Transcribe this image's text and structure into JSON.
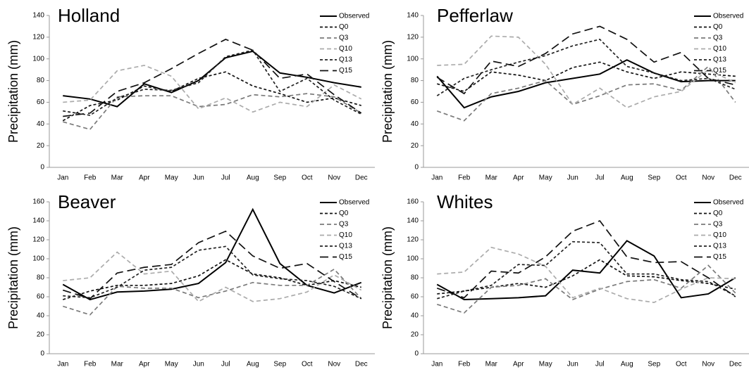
{
  "chart_data": [
    {
      "type": "line",
      "title": "Holland",
      "y_label": "Precipitation (mm)",
      "categories": [
        "Jan",
        "Feb",
        "Mar",
        "Apr",
        "May",
        "Jun",
        "Jul",
        "Aug",
        "Sep",
        "Oct",
        "Nov",
        "Dec"
      ],
      "ylim": [
        0,
        140
      ],
      "yticks": [
        0,
        20,
        40,
        60,
        80,
        100,
        120,
        140
      ],
      "legend": "top-right",
      "series": [
        {
          "name": "Observed",
          "color": "#000000",
          "dash": "none",
          "values": [
            66,
            63,
            56,
            77,
            69,
            80,
            101,
            107,
            87,
            83,
            78,
            74
          ]
        },
        {
          "name": "Q0",
          "color": "#111111",
          "dash": "4 3",
          "values": [
            43,
            57,
            62,
            75,
            70,
            82,
            88,
            75,
            68,
            60,
            64,
            57
          ]
        },
        {
          "name": "Q3",
          "color": "#7a7a7a",
          "dash": "6 4",
          "values": [
            42,
            35,
            65,
            66,
            66,
            56,
            58,
            67,
            65,
            68,
            65,
            50
          ]
        },
        {
          "name": "Q10",
          "color": "#ababab",
          "dash": "6 4",
          "values": [
            60,
            62,
            89,
            94,
            84,
            54,
            64,
            51,
            60,
            56,
            76,
            63
          ]
        },
        {
          "name": "Q13",
          "color": "#222222",
          "dash": "4 3",
          "values": [
            52,
            48,
            64,
            72,
            71,
            78,
            102,
            108,
            70,
            82,
            62,
            49
          ]
        },
        {
          "name": "Q15",
          "color": "#111111",
          "dash": "12 6",
          "values": [
            47,
            50,
            70,
            78,
            91,
            105,
            118,
            108,
            82,
            86,
            67,
            50
          ]
        }
      ]
    },
    {
      "type": "line",
      "title": "Pefferlaw",
      "y_label": "Precipitation (mm)",
      "categories": [
        "Jan",
        "Feb",
        "Mar",
        "Apr",
        "May",
        "Jun",
        "Jul",
        "Aug",
        "Sep",
        "Oct",
        "Nov",
        "Dec"
      ],
      "ylim": [
        0,
        140
      ],
      "yticks": [
        0,
        20,
        40,
        60,
        80,
        100,
        120,
        140
      ],
      "legend": "top-right",
      "series": [
        {
          "name": "Observed",
          "color": "#000000",
          "dash": "none",
          "values": [
            84,
            55,
            65,
            70,
            78,
            82,
            86,
            99,
            87,
            79,
            80,
            80
          ]
        },
        {
          "name": "Q0",
          "color": "#111111",
          "dash": "4 3",
          "values": [
            77,
            70,
            88,
            85,
            80,
            92,
            97,
            88,
            82,
            88,
            86,
            84
          ]
        },
        {
          "name": "Q3",
          "color": "#7a7a7a",
          "dash": "6 4",
          "values": [
            52,
            43,
            68,
            73,
            80,
            58,
            66,
            76,
            77,
            71,
            93,
            60
          ]
        },
        {
          "name": "Q10",
          "color": "#ababab",
          "dash": "6 4",
          "values": [
            94,
            95,
            121,
            120,
            95,
            58,
            73,
            55,
            65,
            70,
            90,
            78
          ]
        },
        {
          "name": "Q13",
          "color": "#222222",
          "dash": "4 3",
          "values": [
            66,
            82,
            90,
            97,
            103,
            112,
            118,
            93,
            87,
            80,
            82,
            72
          ]
        },
        {
          "name": "Q15",
          "color": "#111111",
          "dash": "12 6",
          "values": [
            83,
            68,
            98,
            93,
            105,
            123,
            130,
            118,
            97,
            106,
            82,
            76
          ]
        }
      ]
    },
    {
      "type": "line",
      "title": "Beaver",
      "y_label": "Precipitation (mm)",
      "categories": [
        "Jan",
        "Feb",
        "Mar",
        "Apr",
        "May",
        "Jun",
        "Jul",
        "Aug",
        "Sep",
        "Oct",
        "Nov",
        "Dec"
      ],
      "ylim": [
        0,
        160
      ],
      "yticks": [
        0,
        20,
        40,
        60,
        80,
        100,
        120,
        140,
        160
      ],
      "legend": "top-right",
      "series": [
        {
          "name": "Observed",
          "color": "#000000",
          "dash": "none",
          "values": [
            73,
            57,
            65,
            66,
            68,
            74,
            96,
            152,
            95,
            72,
            64,
            75
          ]
        },
        {
          "name": "Q0",
          "color": "#111111",
          "dash": "4 3",
          "values": [
            57,
            66,
            72,
            72,
            74,
            82,
            99,
            84,
            80,
            72,
            77,
            70
          ]
        },
        {
          "name": "Q3",
          "color": "#7a7a7a",
          "dash": "6 4",
          "values": [
            50,
            41,
            71,
            69,
            69,
            59,
            66,
            75,
            72,
            72,
            89,
            58
          ]
        },
        {
          "name": "Q10",
          "color": "#ababab",
          "dash": "6 4",
          "values": [
            77,
            80,
            107,
            84,
            87,
            55,
            70,
            55,
            58,
            65,
            83,
            67
          ]
        },
        {
          "name": "Q13",
          "color": "#222222",
          "dash": "4 3",
          "values": [
            61,
            59,
            70,
            88,
            91,
            109,
            113,
            83,
            79,
            77,
            71,
            58
          ]
        },
        {
          "name": "Q15",
          "color": "#111111",
          "dash": "12 6",
          "values": [
            67,
            58,
            85,
            91,
            94,
            117,
            129,
            103,
            90,
            95,
            76,
            58
          ]
        }
      ]
    },
    {
      "type": "line",
      "title": "Whites",
      "y_label": "Precipitation (mm)",
      "categories": [
        "Jan",
        "Feb",
        "Mar",
        "Apr",
        "May",
        "Jun",
        "Jul",
        "Aug",
        "Sep",
        "Oct",
        "Nov",
        "Dec"
      ],
      "ylim": [
        0,
        160
      ],
      "yticks": [
        0,
        20,
        40,
        60,
        80,
        100,
        120,
        140,
        160
      ],
      "legend": "top-right",
      "series": [
        {
          "name": "Observed",
          "color": "#000000",
          "dash": "none",
          "values": [
            73,
            57,
            58,
            59,
            61,
            88,
            85,
            119,
            103,
            59,
            63,
            80
          ]
        },
        {
          "name": "Q0",
          "color": "#111111",
          "dash": "4 3",
          "values": [
            63,
            66,
            70,
            74,
            70,
            82,
            99,
            82,
            81,
            77,
            74,
            68
          ]
        },
        {
          "name": "Q3",
          "color": "#7a7a7a",
          "dash": "6 4",
          "values": [
            52,
            43,
            70,
            72,
            79,
            57,
            68,
            76,
            78,
            69,
            93,
            64
          ]
        },
        {
          "name": "Q10",
          "color": "#ababab",
          "dash": "6 4",
          "values": [
            84,
            86,
            112,
            105,
            92,
            59,
            69,
            58,
            54,
            68,
            80,
            79
          ]
        },
        {
          "name": "Q13",
          "color": "#222222",
          "dash": "4 3",
          "values": [
            58,
            66,
            72,
            94,
            93,
            118,
            117,
            84,
            84,
            78,
            76,
            61
          ]
        },
        {
          "name": "Q15",
          "color": "#111111",
          "dash": "12 6",
          "values": [
            69,
            59,
            87,
            85,
            102,
            129,
            140,
            102,
            96,
            97,
            80,
            60
          ]
        }
      ]
    }
  ]
}
